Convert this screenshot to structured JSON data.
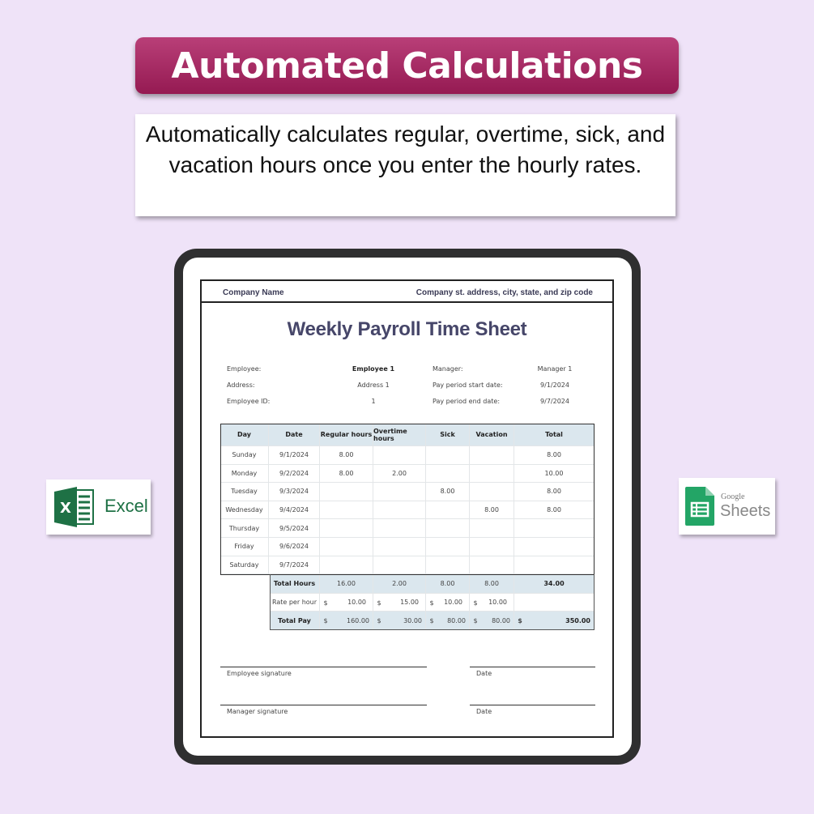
{
  "banner": {
    "title": "Automated Calculations"
  },
  "subtitle": {
    "text": "Automatically calculates regular, overtime, sick, and vacation hours once you enter the hourly rates."
  },
  "sheet": {
    "company_name": "Company Name",
    "company_address": "Company st. address, city, state, and zip code",
    "title": "Weekly Payroll Time Sheet",
    "info": {
      "employee_label": "Employee:",
      "employee": "Employee 1",
      "address_label": "Address:",
      "address": "Address 1",
      "employee_id_label": "Employee ID:",
      "employee_id": "1",
      "manager_label": "Manager:",
      "manager": "Manager 1",
      "start_label": "Pay period start date:",
      "start": "9/1/2024",
      "end_label": "Pay period end date:",
      "end": "9/7/2024"
    },
    "columns": [
      "Day",
      "Date",
      "Regular hours",
      "Overtime hours",
      "Sick",
      "Vacation",
      "Total"
    ],
    "rows": [
      [
        "Sunday",
        "9/1/2024",
        "8.00",
        "",
        "",
        "",
        "8.00"
      ],
      [
        "Monday",
        "9/2/2024",
        "8.00",
        "2.00",
        "",
        "",
        "10.00"
      ],
      [
        "Tuesday",
        "9/3/2024",
        "",
        "",
        "8.00",
        "",
        "8.00"
      ],
      [
        "Wednesday",
        "9/4/2024",
        "",
        "",
        "",
        "8.00",
        "8.00"
      ],
      [
        "Thursday",
        "9/5/2024",
        "",
        "",
        "",
        "",
        ""
      ],
      [
        "Friday",
        "9/6/2024",
        "",
        "",
        "",
        "",
        ""
      ],
      [
        "Saturday",
        "9/7/2024",
        "",
        "",
        "",
        "",
        ""
      ]
    ],
    "total_hours": {
      "label": "Total Hours",
      "values": [
        "16.00",
        "2.00",
        "8.00",
        "8.00",
        "34.00"
      ]
    },
    "rate": {
      "label": "Rate per hour",
      "currency": "$",
      "values": [
        "10.00",
        "15.00",
        "10.00",
        "10.00"
      ]
    },
    "total_pay": {
      "label": "Total Pay",
      "currency": "$",
      "values": [
        "160.00",
        "30.00",
        "80.00",
        "80.00",
        "350.00"
      ]
    },
    "signatures": {
      "employee": "Employee signature",
      "manager": "Manager signature",
      "date": "Date"
    }
  },
  "badges": {
    "excel": "Excel",
    "google": "Google",
    "sheets": "Sheets"
  },
  "colors": {
    "banner": "#a8285f",
    "excel": "#1e7145",
    "sheets": "#23a566",
    "header_fill": "#dbe7ee",
    "title": "#464669"
  }
}
